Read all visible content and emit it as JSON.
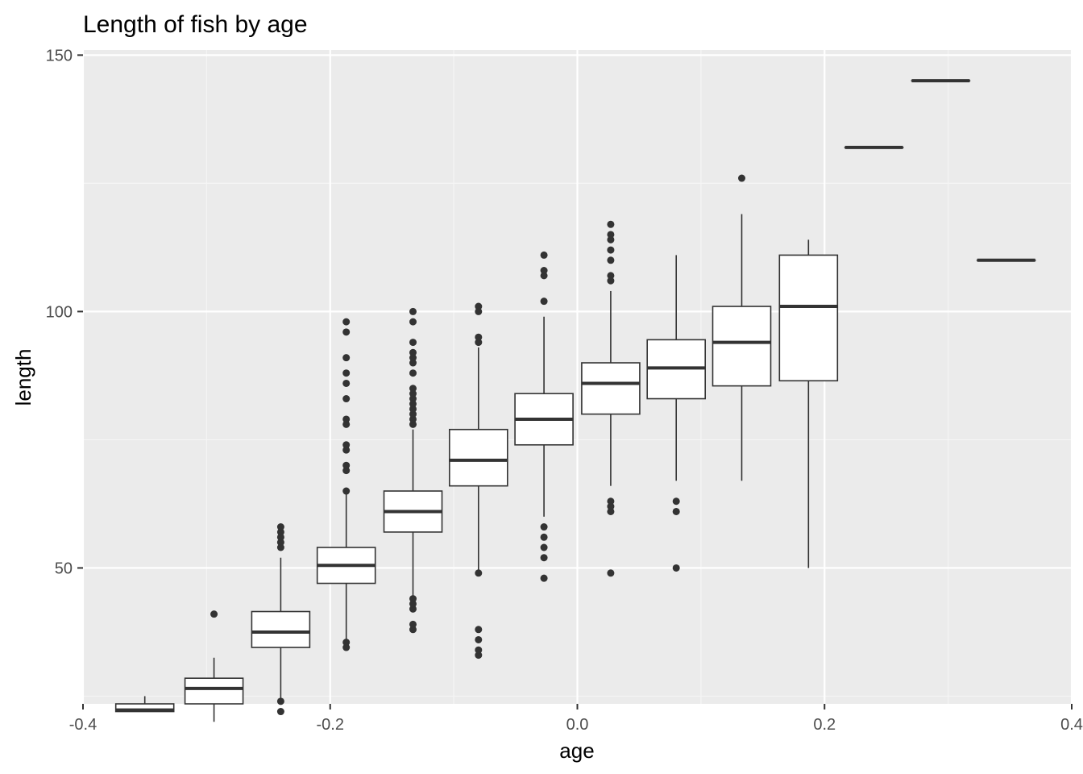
{
  "chart_data": {
    "type": "boxplot",
    "title": "Length of fish by age",
    "xlabel": "age",
    "ylabel": "length",
    "xlim": [
      -0.4,
      0.4
    ],
    "ylim": [
      23.5,
      151
    ],
    "x_ticks": [
      -0.4,
      -0.2,
      0.0,
      0.2,
      0.4
    ],
    "x_tick_labels": [
      "-0.4",
      "-0.2",
      "0.0",
      "0.2",
      "0.4"
    ],
    "y_ticks": [
      50,
      100,
      150
    ],
    "y_tick_labels": [
      "50",
      "100",
      "150"
    ],
    "grid": true,
    "legend": "none",
    "boxes": [
      {
        "x": -0.35,
        "lower_whisker": 22,
        "q1": 22,
        "median": 22.3,
        "q3": 23.5,
        "upper_whisker": 25,
        "outliers": []
      },
      {
        "x": -0.294,
        "lower_whisker": 20,
        "q1": 23.5,
        "median": 26.5,
        "q3": 28.5,
        "upper_whisker": 32.5,
        "outliers": [
          41
        ]
      },
      {
        "x": -0.24,
        "lower_whisker": 24,
        "q1": 34.5,
        "median": 37.5,
        "q3": 41.5,
        "upper_whisker": 52,
        "outliers": [
          22,
          24,
          54,
          55,
          56,
          57,
          58
        ]
      },
      {
        "x": -0.187,
        "lower_whisker": 36,
        "q1": 47,
        "median": 50.5,
        "q3": 54,
        "upper_whisker": 65,
        "outliers": [
          34.5,
          35.5,
          65,
          69,
          70,
          73,
          74,
          78,
          79,
          83,
          86,
          88,
          91,
          96,
          98
        ]
      },
      {
        "x": -0.133,
        "lower_whisker": 44,
        "q1": 57,
        "median": 61,
        "q3": 65,
        "upper_whisker": 77,
        "outliers": [
          38,
          39,
          42,
          43,
          44,
          78,
          79,
          80,
          81,
          82,
          83,
          84,
          85,
          88,
          90,
          91,
          92,
          94,
          98,
          100
        ]
      },
      {
        "x": -0.08,
        "lower_whisker": 49,
        "q1": 66,
        "median": 71,
        "q3": 77,
        "upper_whisker": 93,
        "outliers": [
          33,
          34,
          36,
          38,
          49,
          94,
          95,
          100,
          101
        ]
      },
      {
        "x": -0.027,
        "lower_whisker": 60,
        "q1": 74,
        "median": 79,
        "q3": 84,
        "upper_whisker": 99,
        "outliers": [
          48,
          52,
          54,
          56,
          58,
          102,
          107,
          108,
          111
        ]
      },
      {
        "x": 0.027,
        "lower_whisker": 66,
        "q1": 80,
        "median": 86,
        "q3": 90,
        "upper_whisker": 104,
        "outliers": [
          49,
          61,
          62,
          63,
          106,
          107,
          110,
          112,
          114,
          115,
          117
        ]
      },
      {
        "x": 0.08,
        "lower_whisker": 67,
        "q1": 83,
        "median": 89,
        "q3": 94.5,
        "upper_whisker": 111,
        "outliers": [
          50,
          61,
          63
        ]
      },
      {
        "x": 0.133,
        "lower_whisker": 67,
        "q1": 85.5,
        "median": 94,
        "q3": 101,
        "upper_whisker": 119,
        "outliers": [
          126
        ]
      },
      {
        "x": 0.187,
        "lower_whisker": 50,
        "q1": 86.5,
        "median": 101,
        "q3": 111,
        "upper_whisker": 114,
        "outliers": []
      },
      {
        "x": 0.24,
        "lower_whisker": 132,
        "q1": 132,
        "median": 132,
        "q3": 132,
        "upper_whisker": 132,
        "outliers": []
      },
      {
        "x": 0.294,
        "lower_whisker": 145,
        "q1": 145,
        "median": 145,
        "q3": 145,
        "upper_whisker": 145,
        "outliers": []
      },
      {
        "x": 0.347,
        "lower_whisker": 110,
        "q1": 110,
        "median": 110,
        "q3": 110,
        "upper_whisker": 110,
        "outliers": []
      }
    ],
    "colors": {
      "panel_background": "#ebebeb",
      "grid_major": "#ffffff",
      "grid_minor": "#f5f5f5",
      "box_fill": "#ffffff",
      "box_line": "#333333",
      "tick": "#333333",
      "tick_text": "#4d4d4d",
      "title_text": "#000000"
    }
  }
}
